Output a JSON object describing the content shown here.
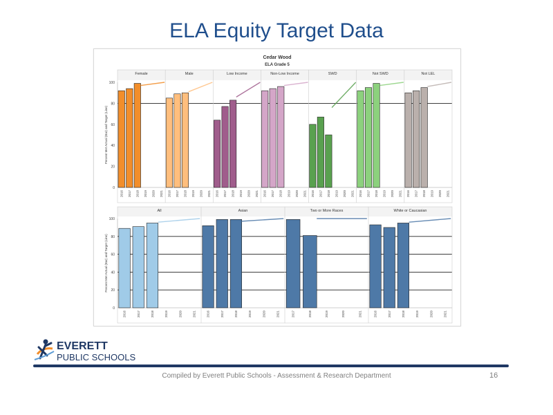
{
  "slide": {
    "title": "ELA Equity Target Data",
    "footer": "Compiled  by Everett Public Schools - Assessment & Research Department",
    "page_number": "16",
    "logo": {
      "line1": "EVERETT",
      "line2": "PUBLIC SCHOOLS"
    }
  },
  "chart_data": [
    {
      "type": "bar",
      "title": "Cedar Wood",
      "subtitle": "ELA Grade 5",
      "ylabel": "Percent Met Actual (Bar) and Target (Line)",
      "ylim": [
        0,
        100
      ],
      "yticks": [
        0,
        20,
        40,
        60,
        80,
        100
      ],
      "reference_line": 80,
      "years": [
        "2016",
        "2017",
        "2018",
        "2019",
        "2020",
        "2021"
      ],
      "panels": [
        {
          "name": "Female",
          "color": "#f28e2b",
          "actual": {
            "2016": 92,
            "2017": 94,
            "2018": 99
          },
          "target": [
            [
              2018,
              97
            ],
            [
              2021,
              100
            ]
          ]
        },
        {
          "name": "Male",
          "color": "#ffbe7d",
          "actual": {
            "2016": 85,
            "2017": 89,
            "2018": 90
          },
          "target": [
            [
              2018,
              91
            ],
            [
              2021,
              100
            ]
          ]
        },
        {
          "name": "Low Income",
          "color": "#a05d8c",
          "actual": {
            "2016": 64,
            "2017": 77,
            "2018": 83
          },
          "target": [
            [
              2018,
              86
            ],
            [
              2021,
              100
            ]
          ]
        },
        {
          "name": "Non-Low Income",
          "color": "#d4a6c8",
          "actual": {
            "2016": 92,
            "2017": 94,
            "2018": 96
          },
          "target": [
            [
              2018,
              97
            ],
            [
              2021,
              100
            ]
          ]
        },
        {
          "name": "SWD",
          "color": "#59a14f",
          "actual": {
            "2016": 60,
            "2017": 67,
            "2018": 50
          },
          "target": [
            [
              2018,
              76
            ],
            [
              2021,
              100
            ]
          ]
        },
        {
          "name": "Not SWD",
          "color": "#8cd17d",
          "actual": {
            "2016": 92,
            "2017": 95,
            "2018": 99
          },
          "target": [
            [
              2018,
              97
            ],
            [
              2021,
              100
            ]
          ]
        },
        {
          "name": "Not LEL",
          "color": "#bab0ac",
          "actual": {
            "2016": 90,
            "2017": 92,
            "2018": 95
          },
          "target": [
            [
              2018,
              96
            ],
            [
              2021,
              100
            ]
          ]
        }
      ]
    },
    {
      "type": "bar",
      "title": "",
      "ylabel": "Percent Met Actual (Bar) and Target (Line)",
      "ylim": [
        0,
        100
      ],
      "yticks": [
        0,
        20,
        40,
        60,
        80,
        100
      ],
      "reference_lines": [
        20,
        40,
        60,
        80
      ],
      "panels": [
        {
          "name": "All",
          "color": "#a0cbe8",
          "years": [
            "2016",
            "2017",
            "2018",
            "2019",
            "2020",
            "2021"
          ],
          "actual": {
            "2016": 89,
            "2017": 91,
            "2018": 95
          },
          "target": [
            [
              2018,
              96
            ],
            [
              2021,
              100
            ]
          ]
        },
        {
          "name": "Asian",
          "color": "#4e79a7",
          "years": [
            "2016",
            "2017",
            "2018",
            "2019",
            "2020",
            "2021"
          ],
          "actual": {
            "2016": 92,
            "2017": 99,
            "2018": 99
          },
          "target": [
            [
              2018,
              97
            ],
            [
              2021,
              100
            ]
          ]
        },
        {
          "name": "Two or More Races",
          "color": "#4e79a7",
          "years": [
            "2017",
            "2018",
            "2019",
            "2020",
            "2021"
          ],
          "actual": {
            "2017": 99,
            "2018": 81
          },
          "target": [
            [
              2018,
              100
            ],
            [
              2021,
              100
            ]
          ]
        },
        {
          "name": "White or Caucasian",
          "color": "#4e79a7",
          "years": [
            "2016",
            "2017",
            "2018",
            "2019",
            "2020",
            "2021"
          ],
          "actual": {
            "2016": 93,
            "2017": 90,
            "2018": 95
          },
          "target": [
            [
              2018,
              96
            ],
            [
              2021,
              100
            ]
          ]
        }
      ]
    }
  ]
}
